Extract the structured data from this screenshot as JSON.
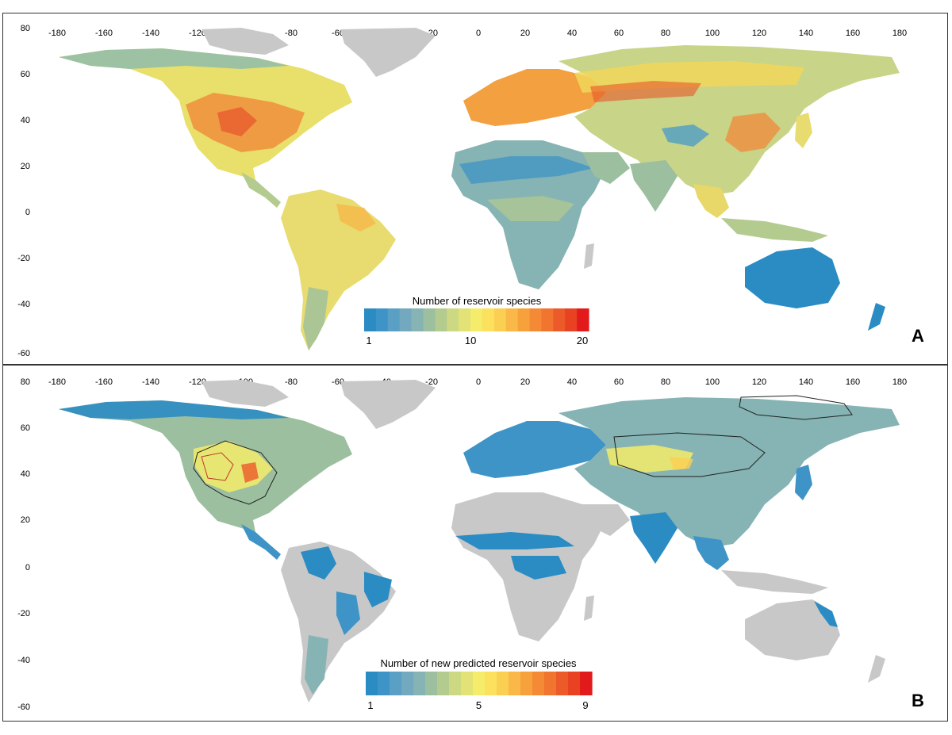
{
  "colors": {
    "land_no_data": "#c8c8c8",
    "ocean": "#ffffff",
    "frame": "#333333",
    "scale": [
      "#2b8cc4",
      "#3e94c6",
      "#5aa0c4",
      "#72a9bf",
      "#86b3b3",
      "#9cbf9f",
      "#b3cb8e",
      "#cdd882",
      "#e2e276",
      "#f4ec6a",
      "#fbe15e",
      "#fbcf51",
      "#f9b847",
      "#f7a13d",
      "#f48a36",
      "#f1742f",
      "#ec5a29",
      "#e84223",
      "#e31a1c"
    ]
  },
  "axes": {
    "lon_ticks": [
      "-180",
      "-160",
      "-140",
      "-120",
      "-100",
      "-80",
      "-60",
      "-40",
      "-20",
      "0",
      "20",
      "40",
      "60",
      "80",
      "100",
      "120",
      "140",
      "160",
      "180"
    ],
    "lat_ticks": [
      "80",
      "60",
      "40",
      "20",
      "0",
      "-20",
      "-40",
      "-60"
    ]
  },
  "panel_a": {
    "letter": "A",
    "legend_title": "Number of reservoir species",
    "legend_ticks": [
      {
        "value": 1,
        "label": "1"
      },
      {
        "value": 10,
        "label": "10"
      },
      {
        "value": 20,
        "label": "20"
      }
    ],
    "legend_min": 1,
    "legend_max": 20
  },
  "panel_b": {
    "letter": "B",
    "legend_title": "Number of new predicted reservoir species",
    "legend_ticks": [
      {
        "value": 1,
        "label": "1"
      },
      {
        "value": 5,
        "label": "5"
      },
      {
        "value": 9,
        "label": "9"
      }
    ],
    "legend_min": 1,
    "legend_max": 9
  }
}
